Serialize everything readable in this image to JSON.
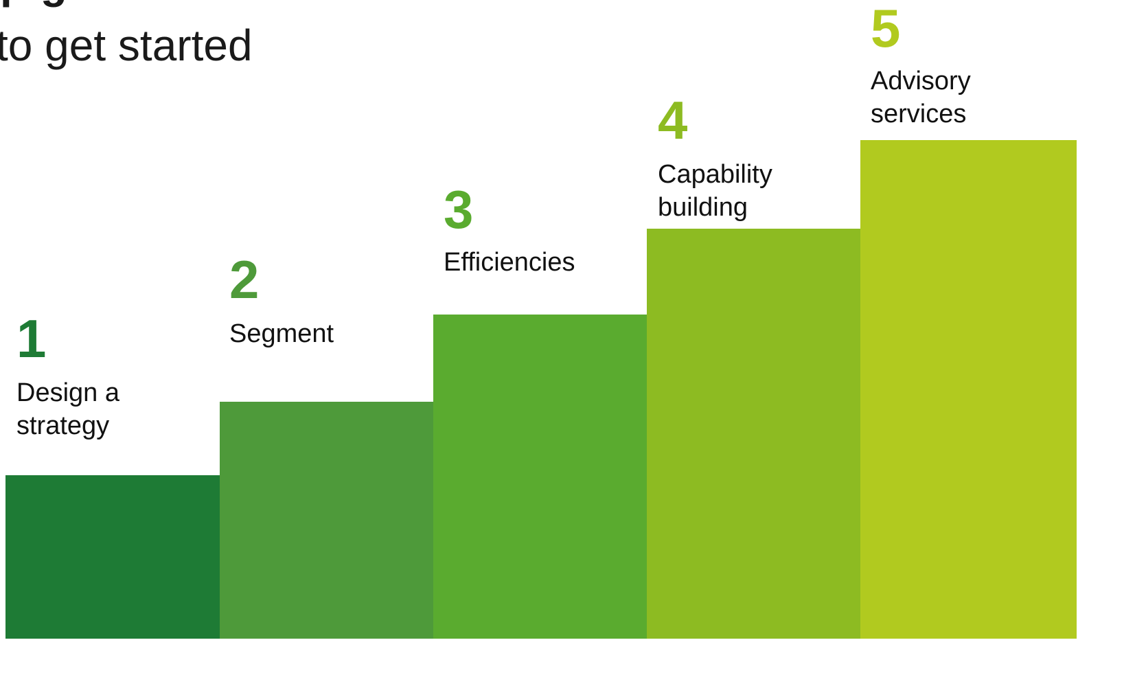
{
  "header": {
    "title_fragment": "p  g",
    "subtitle": "to get started"
  },
  "steps": [
    {
      "number": "1",
      "label": "Design a\nstrategy",
      "color": "#1e7b35"
    },
    {
      "number": "2",
      "label": "Segment",
      "color": "#4e9a3a"
    },
    {
      "number": "3",
      "label": "Efficiencies",
      "color": "#5aab2f"
    },
    {
      "number": "4",
      "label": "Capability\nbuilding",
      "color": "#8dbb22"
    },
    {
      "number": "5",
      "label": "Advisory\nservices",
      "color": "#b1ca1f"
    }
  ]
}
